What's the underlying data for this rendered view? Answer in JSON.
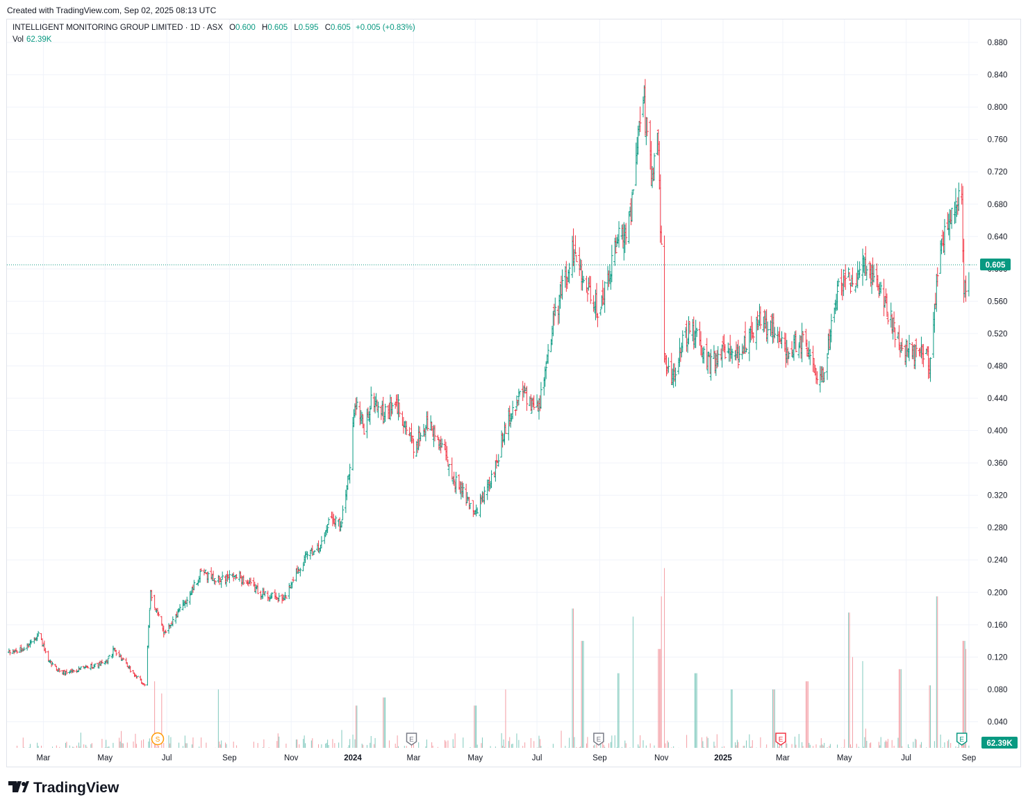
{
  "header": {
    "created": "Created with TradingView.com, Sep 02, 2025 08:13 UTC"
  },
  "legend": {
    "symbol": "INTELLIGENT MONITORING GROUP LIMITED · 1D · ASX",
    "open_label": "O",
    "open": "0.600",
    "high_label": "H",
    "high": "0.605",
    "low_label": "L",
    "low": "0.595",
    "close_label": "C",
    "close": "0.605",
    "change": "+0.005 (+0.83%)",
    "vol_label": "Vol",
    "vol": "62.39K"
  },
  "footer": {
    "logo_text": "TradingView"
  },
  "colors": {
    "up": "#089981",
    "down": "#f23645",
    "grid": "#f0f3fa",
    "axis_text": "#131722"
  },
  "chart_data": {
    "type": "ohlc",
    "symbol": "INTELLIGENT MONITORING GROUP LIMITED",
    "interval": "1D",
    "exchange": "ASX",
    "ylim": [
      0.0,
      0.9
    ],
    "y_ticks": [
      0.04,
      0.08,
      0.12,
      0.16,
      0.2,
      0.24,
      0.28,
      0.32,
      0.36,
      0.4,
      0.44,
      0.48,
      0.52,
      0.56,
      0.6,
      0.64,
      0.68,
      0.72,
      0.76,
      0.8,
      0.84,
      0.88
    ],
    "x_ticks": [
      {
        "label": "Mar",
        "date": "2023-03-01"
      },
      {
        "label": "May",
        "date": "2023-05-01"
      },
      {
        "label": "Jul",
        "date": "2023-07-01"
      },
      {
        "label": "Sep",
        "date": "2023-09-01"
      },
      {
        "label": "Nov",
        "date": "2023-11-01"
      },
      {
        "label": "2024",
        "date": "2024-01-01"
      },
      {
        "label": "Mar",
        "date": "2024-03-01"
      },
      {
        "label": "May",
        "date": "2024-05-01"
      },
      {
        "label": "Jul",
        "date": "2024-07-01"
      },
      {
        "label": "Sep",
        "date": "2024-09-01"
      },
      {
        "label": "Nov",
        "date": "2024-11-01"
      },
      {
        "label": "2025",
        "date": "2025-01-01"
      },
      {
        "label": "Mar",
        "date": "2025-03-01"
      },
      {
        "label": "May",
        "date": "2025-05-01"
      },
      {
        "label": "Jul",
        "date": "2025-07-01"
      },
      {
        "label": "Sep",
        "date": "2025-09-01"
      }
    ],
    "last_price": 0.605,
    "last_price_label": "0.605",
    "last_volume_label": "62.39K",
    "price_path": [
      [
        "2023-01-26",
        0.125
      ],
      [
        "2023-02-10",
        0.13
      ],
      [
        "2023-02-25",
        0.15
      ],
      [
        "2023-03-05",
        0.115
      ],
      [
        "2023-03-20",
        0.1
      ],
      [
        "2023-04-15",
        0.108
      ],
      [
        "2023-05-01",
        0.112
      ],
      [
        "2023-05-10",
        0.13
      ],
      [
        "2023-05-25",
        0.105
      ],
      [
        "2023-06-05",
        0.09
      ],
      [
        "2023-06-10",
        0.085
      ],
      [
        "2023-06-15",
        0.2
      ],
      [
        "2023-06-20",
        0.18
      ],
      [
        "2023-06-28",
        0.15
      ],
      [
        "2023-07-10",
        0.17
      ],
      [
        "2023-07-25",
        0.2
      ],
      [
        "2023-08-05",
        0.225
      ],
      [
        "2023-08-20",
        0.215
      ],
      [
        "2023-09-10",
        0.22
      ],
      [
        "2023-09-25",
        0.205
      ],
      [
        "2023-10-10",
        0.195
      ],
      [
        "2023-10-25",
        0.19
      ],
      [
        "2023-11-05",
        0.225
      ],
      [
        "2023-11-20",
        0.25
      ],
      [
        "2023-12-01",
        0.26
      ],
      [
        "2023-12-10",
        0.295
      ],
      [
        "2023-12-20",
        0.285
      ],
      [
        "2023-12-30",
        0.36
      ],
      [
        "2024-01-03",
        0.44
      ],
      [
        "2024-01-12",
        0.4
      ],
      [
        "2024-01-20",
        0.44
      ],
      [
        "2024-02-01",
        0.42
      ],
      [
        "2024-02-15",
        0.43
      ],
      [
        "2024-03-01",
        0.38
      ],
      [
        "2024-03-15",
        0.41
      ],
      [
        "2024-03-25",
        0.39
      ],
      [
        "2024-04-10",
        0.34
      ],
      [
        "2024-04-25",
        0.31
      ],
      [
        "2024-05-01",
        0.3
      ],
      [
        "2024-05-10",
        0.32
      ],
      [
        "2024-05-20",
        0.35
      ],
      [
        "2024-06-01",
        0.41
      ],
      [
        "2024-06-15",
        0.45
      ],
      [
        "2024-06-30",
        0.43
      ],
      [
        "2024-07-05",
        0.44
      ],
      [
        "2024-07-12",
        0.51
      ],
      [
        "2024-07-25",
        0.57
      ],
      [
        "2024-08-05",
        0.62
      ],
      [
        "2024-08-15",
        0.6
      ],
      [
        "2024-08-30",
        0.55
      ],
      [
        "2024-09-10",
        0.59
      ],
      [
        "2024-09-20",
        0.64
      ],
      [
        "2024-10-01",
        0.66
      ],
      [
        "2024-10-05",
        0.7
      ],
      [
        "2024-10-10",
        0.78
      ],
      [
        "2024-10-15",
        0.8
      ],
      [
        "2024-10-22",
        0.72
      ],
      [
        "2024-10-28",
        0.77
      ],
      [
        "2024-11-01",
        0.62
      ],
      [
        "2024-11-03",
        0.5
      ],
      [
        "2024-11-10",
        0.46
      ],
      [
        "2024-11-20",
        0.5
      ],
      [
        "2024-12-01",
        0.53
      ],
      [
        "2024-12-10",
        0.5
      ],
      [
        "2024-12-20",
        0.48
      ],
      [
        "2024-12-30",
        0.5
      ],
      [
        "2025-01-15",
        0.49
      ],
      [
        "2025-01-25",
        0.51
      ],
      [
        "2025-02-05",
        0.54
      ],
      [
        "2025-02-20",
        0.52
      ],
      [
        "2025-03-05",
        0.5
      ],
      [
        "2025-03-20",
        0.51
      ],
      [
        "2025-04-05",
        0.46
      ],
      [
        "2025-04-12",
        0.47
      ],
      [
        "2025-04-20",
        0.56
      ],
      [
        "2025-05-01",
        0.59
      ],
      [
        "2025-05-10",
        0.58
      ],
      [
        "2025-05-20",
        0.6
      ],
      [
        "2025-06-01",
        0.58
      ],
      [
        "2025-06-15",
        0.54
      ],
      [
        "2025-06-25",
        0.5
      ],
      [
        "2025-07-05",
        0.5
      ],
      [
        "2025-07-15",
        0.495
      ],
      [
        "2025-07-25",
        0.485
      ],
      [
        "2025-08-01",
        0.6
      ],
      [
        "2025-08-10",
        0.65
      ],
      [
        "2025-08-20",
        0.68
      ],
      [
        "2025-08-25",
        0.69
      ],
      [
        "2025-08-27",
        0.56
      ],
      [
        "2025-08-30",
        0.6
      ],
      [
        "2025-09-01",
        0.605
      ]
    ],
    "volume_spikes": [
      [
        "2023-06-18",
        0.09
      ],
      [
        "2023-06-25",
        0.075
      ],
      [
        "2023-08-20",
        0.08
      ],
      [
        "2024-01-05",
        0.06
      ],
      [
        "2024-02-01",
        0.07
      ],
      [
        "2024-05-01",
        0.06
      ],
      [
        "2024-06-01",
        0.08
      ],
      [
        "2024-08-05",
        0.18
      ],
      [
        "2024-08-15",
        0.14
      ],
      [
        "2024-09-20",
        0.1
      ],
      [
        "2024-10-05",
        0.17
      ],
      [
        "2024-10-30",
        0.13
      ],
      [
        "2024-11-02",
        0.195
      ],
      [
        "2024-11-03",
        0.23
      ],
      [
        "2024-12-05",
        0.1
      ],
      [
        "2025-01-10",
        0.08
      ],
      [
        "2025-02-20",
        0.08
      ],
      [
        "2025-03-25",
        0.09
      ],
      [
        "2025-05-05",
        0.175
      ],
      [
        "2025-05-10",
        0.12
      ],
      [
        "2025-05-18",
        0.115
      ],
      [
        "2025-06-25",
        0.105
      ],
      [
        "2025-07-25",
        0.085
      ],
      [
        "2025-08-01",
        0.195
      ],
      [
        "2025-08-27",
        0.14
      ],
      [
        "2025-08-28",
        0.13
      ]
    ],
    "events": [
      {
        "label": "S",
        "date": "2023-06-22",
        "color": "#ff9800"
      },
      {
        "label": "E",
        "date": "2024-02-28",
        "color": "#787b86"
      },
      {
        "label": "E",
        "date": "2024-08-31",
        "color": "#787b86"
      },
      {
        "label": "E",
        "date": "2025-02-27",
        "color": "#f23645"
      },
      {
        "label": "E",
        "date": "2025-08-25",
        "color": "#089981"
      }
    ]
  }
}
